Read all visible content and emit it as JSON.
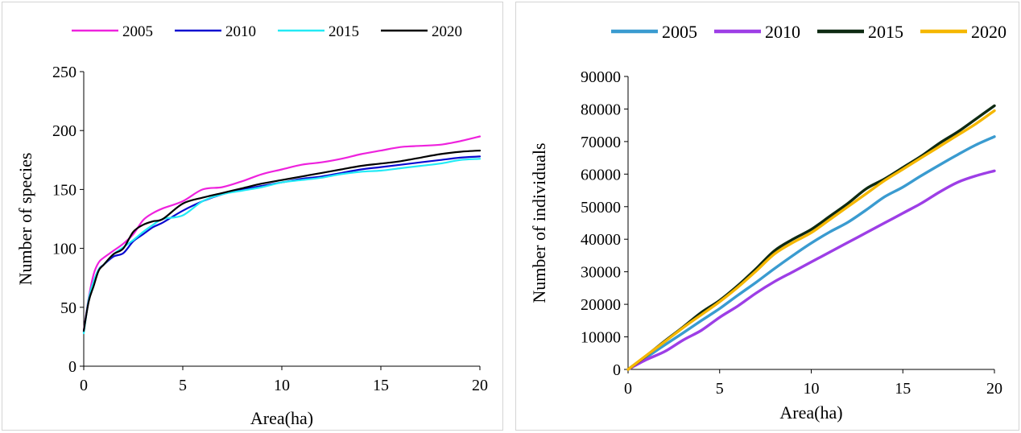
{
  "chart_data": [
    {
      "type": "line",
      "xlabel": "Area(ha)",
      "ylabel": "Number of species",
      "xlim": [
        0,
        20
      ],
      "ylim": [
        0,
        250
      ],
      "xticks": [
        "0",
        "5",
        "10",
        "15",
        "20"
      ],
      "yticks": [
        "0",
        "50",
        "100",
        "150",
        "200",
        "250"
      ],
      "legend_position": "top",
      "grid": false,
      "series": [
        {
          "name": "2005",
          "color": "#ee22dd",
          "x": [
            0,
            0.25,
            0.5,
            0.75,
            1,
            1.5,
            2,
            2.5,
            3,
            3.5,
            4,
            5,
            6,
            7,
            8,
            9,
            10,
            11,
            12,
            13,
            14,
            15,
            16,
            17,
            18,
            19,
            20
          ],
          "y": [
            30,
            58,
            78,
            88,
            92,
            98,
            104,
            112,
            124,
            130,
            134,
            140,
            150,
            152,
            157,
            163,
            167,
            171,
            173,
            176,
            180,
            183,
            186,
            187,
            188,
            191,
            195
          ]
        },
        {
          "name": "2010",
          "color": "#0a0ad0",
          "x": [
            0,
            0.25,
            0.5,
            0.75,
            1,
            1.5,
            2,
            2.5,
            3,
            3.5,
            4,
            5,
            6,
            7,
            8,
            9,
            10,
            11,
            12,
            13,
            14,
            15,
            16,
            17,
            18,
            19,
            20
          ],
          "y": [
            29,
            56,
            70,
            82,
            86,
            93,
            96,
            106,
            112,
            118,
            122,
            132,
            140,
            146,
            150,
            153,
            156,
            159,
            161,
            164,
            167,
            169,
            171,
            173,
            175,
            177,
            178
          ]
        },
        {
          "name": "2015",
          "color": "#22eaf5",
          "x": [
            0,
            0.25,
            0.5,
            0.75,
            1,
            1.5,
            2,
            2.5,
            3,
            3.5,
            4,
            5,
            6,
            7,
            8,
            9,
            10,
            11,
            12,
            13,
            14,
            15,
            16,
            17,
            18,
            19,
            20
          ],
          "y": [
            28,
            57,
            72,
            82,
            86,
            95,
            101,
            107,
            114,
            120,
            125,
            128,
            140,
            146,
            149,
            152,
            156,
            158,
            160,
            163,
            165,
            166,
            168,
            170,
            172,
            175,
            176
          ]
        },
        {
          "name": "2020",
          "color": "#000000",
          "x": [
            0,
            0.25,
            0.5,
            0.75,
            1,
            1.5,
            2,
            2.5,
            3,
            3.5,
            4,
            5,
            6,
            7,
            8,
            9,
            10,
            11,
            12,
            13,
            14,
            15,
            16,
            17,
            18,
            19,
            20
          ],
          "y": [
            30,
            55,
            68,
            81,
            86,
            95,
            100,
            114,
            120,
            123,
            125,
            138,
            143,
            147,
            151,
            155,
            158,
            161,
            164,
            167,
            170,
            172,
            174,
            177,
            180,
            182,
            183
          ]
        }
      ]
    },
    {
      "type": "line",
      "xlabel": "Area(ha)",
      "ylabel": "Number of individuals",
      "xlim": [
        0,
        20
      ],
      "ylim": [
        0,
        90000
      ],
      "xticks": [
        "0",
        "5",
        "10",
        "15",
        "20"
      ],
      "yticks": [
        "0",
        "10000",
        "20000",
        "30000",
        "40000",
        "50000",
        "60000",
        "70000",
        "80000",
        "90000"
      ],
      "legend_position": "top",
      "grid": false,
      "series": [
        {
          "name": "2005",
          "color": "#3a9bd0",
          "x": [
            0,
            1,
            2,
            3,
            4,
            5,
            6,
            7,
            8,
            9,
            10,
            11,
            12,
            13,
            14,
            15,
            16,
            17,
            18,
            19,
            20
          ],
          "y": [
            0,
            3700,
            7500,
            11200,
            15000,
            18700,
            22800,
            26800,
            31000,
            35000,
            38800,
            42200,
            45200,
            49000,
            53000,
            56000,
            59500,
            62800,
            66000,
            69000,
            71500
          ]
        },
        {
          "name": "2010",
          "color": "#9d3ee6",
          "x": [
            0,
            1,
            2,
            3,
            4,
            5,
            6,
            7,
            8,
            9,
            10,
            11,
            12,
            13,
            14,
            15,
            16,
            17,
            18,
            19,
            20
          ],
          "y": [
            0,
            3000,
            5500,
            9000,
            12000,
            16000,
            19500,
            23500,
            27000,
            30000,
            33000,
            36000,
            39000,
            42000,
            45000,
            48000,
            51000,
            54500,
            57500,
            59500,
            61000
          ]
        },
        {
          "name": "2015",
          "color": "#0e2a12",
          "x": [
            0,
            1,
            2,
            3,
            4,
            5,
            6,
            7,
            8,
            9,
            10,
            11,
            12,
            13,
            14,
            15,
            16,
            17,
            18,
            19,
            20
          ],
          "y": [
            0,
            4200,
            8700,
            13000,
            17500,
            21200,
            25800,
            31000,
            36500,
            40000,
            43000,
            47000,
            51000,
            55500,
            58500,
            62000,
            65500,
            69500,
            73000,
            77000,
            81000
          ]
        },
        {
          "name": "2020",
          "color": "#f5b700",
          "x": [
            0,
            1,
            2,
            3,
            4,
            5,
            6,
            7,
            8,
            9,
            10,
            11,
            12,
            13,
            14,
            15,
            16,
            17,
            18,
            19,
            20
          ],
          "y": [
            0,
            4300,
            8500,
            12800,
            16800,
            20800,
            25300,
            30300,
            35500,
            39000,
            42000,
            46000,
            50000,
            54000,
            58000,
            61500,
            65000,
            68500,
            72000,
            75500,
            79500
          ]
        }
      ]
    }
  ]
}
